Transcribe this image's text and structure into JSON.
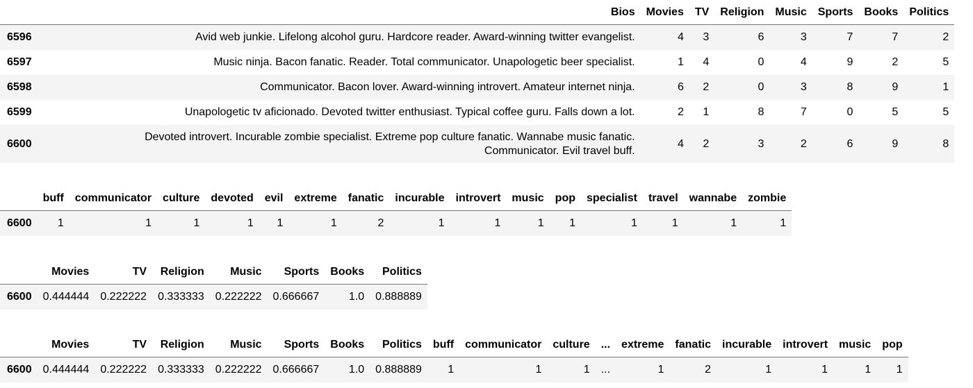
{
  "table1": {
    "columns": [
      "Bios",
      "Movies",
      "TV",
      "Religion",
      "Music",
      "Sports",
      "Books",
      "Politics"
    ],
    "rows": [
      {
        "index": "6596",
        "bio": "Avid web junkie. Lifelong alcohol guru. Hardcore reader. Award-winning twitter evangelist.",
        "bio_line2": "",
        "values": [
          "4",
          "3",
          "6",
          "3",
          "7",
          "7",
          "2"
        ]
      },
      {
        "index": "6597",
        "bio": "Music ninja. Bacon fanatic. Reader. Total communicator. Unapologetic beer specialist.",
        "bio_line2": "",
        "values": [
          "1",
          "4",
          "0",
          "4",
          "9",
          "2",
          "5"
        ]
      },
      {
        "index": "6598",
        "bio": "Communicator. Bacon lover. Award-winning introvert. Amateur internet ninja.",
        "bio_line2": "",
        "values": [
          "6",
          "2",
          "0",
          "3",
          "8",
          "9",
          "1"
        ]
      },
      {
        "index": "6599",
        "bio": "Unapologetic tv aficionado. Devoted twitter enthusiast. Typical coffee guru. Falls down a lot.",
        "bio_line2": "",
        "values": [
          "2",
          "1",
          "8",
          "7",
          "0",
          "5",
          "5"
        ]
      },
      {
        "index": "6600",
        "bio": "Devoted introvert. Incurable zombie specialist. Extreme pop culture fanatic. Wannabe music fanatic.",
        "bio_line2": "Communicator. Evil travel buff.",
        "values": [
          "4",
          "2",
          "3",
          "2",
          "6",
          "9",
          "8"
        ]
      }
    ]
  },
  "table2": {
    "columns": [
      "buff",
      "communicator",
      "culture",
      "devoted",
      "evil",
      "extreme",
      "fanatic",
      "incurable",
      "introvert",
      "music",
      "pop",
      "specialist",
      "travel",
      "wannabe",
      "zombie"
    ],
    "rows": [
      {
        "index": "6600",
        "values": [
          "1",
          "1",
          "1",
          "1",
          "1",
          "1",
          "2",
          "1",
          "1",
          "1",
          "1",
          "1",
          "1",
          "1",
          "1"
        ]
      }
    ]
  },
  "table3": {
    "columns": [
      "Movies",
      "TV",
      "Religion",
      "Music",
      "Sports",
      "Books",
      "Politics"
    ],
    "rows": [
      {
        "index": "6600",
        "values": [
          "0.444444",
          "0.222222",
          "0.333333",
          "0.222222",
          "0.666667",
          "1.0",
          "0.888889"
        ]
      }
    ]
  },
  "table4": {
    "columns": [
      "Movies",
      "TV",
      "Religion",
      "Music",
      "Sports",
      "Books",
      "Politics",
      "buff",
      "communicator",
      "culture",
      "...",
      "extreme",
      "fanatic",
      "incurable",
      "introvert",
      "music",
      "pop"
    ],
    "rows": [
      {
        "index": "6600",
        "values": [
          "0.444444",
          "0.222222",
          "0.333333",
          "0.222222",
          "0.666667",
          "1.0",
          "0.888889",
          "1",
          "1",
          "1",
          "...",
          "1",
          "2",
          "1",
          "1",
          "1",
          "1"
        ]
      }
    ]
  }
}
